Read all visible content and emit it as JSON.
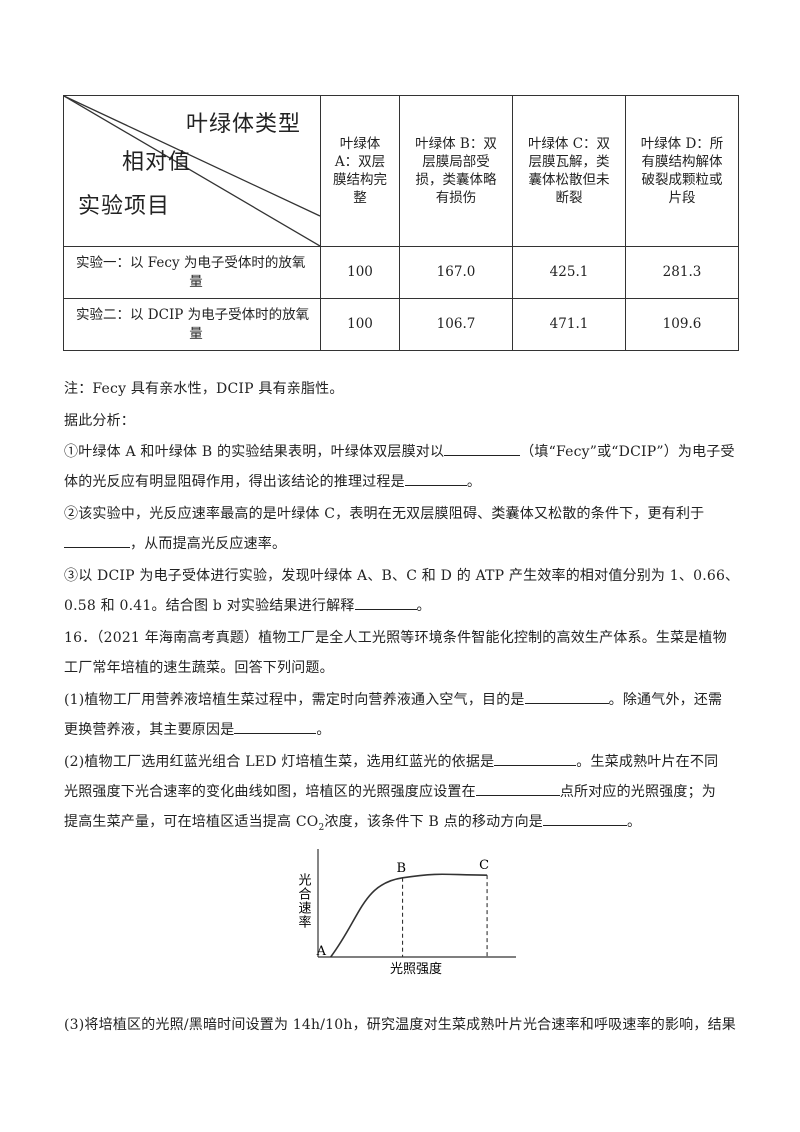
{
  "table": {
    "header": {
      "corner_top": "叶绿体类型",
      "corner_middle": "相对值",
      "corner_bottom": "实验项目",
      "columns": [
        [
          "叶绿体",
          "A：双层",
          "膜结构完",
          "整"
        ],
        [
          "叶绿体 B：双",
          "层膜局部受",
          "损，类囊体略",
          "有损伤"
        ],
        [
          "叶绿体 C：双",
          "层膜瓦解，类",
          "囊体松散但未",
          "断裂"
        ],
        [
          "叶绿体 D：所",
          "有膜结构解体",
          "破裂成颗粒或",
          "片段"
        ]
      ]
    },
    "rows": [
      {
        "label_line1": "实验一：以 Fecy 为电子受体时的放氧",
        "label_line2": "量",
        "values": [
          "100",
          "167.0",
          "425.1",
          "281.3"
        ]
      },
      {
        "label_line1": "实验二：以 DCIP 为电子受体时的放氧",
        "label_line2": "量",
        "values": [
          "100",
          "106.7",
          "471.1",
          "109.6"
        ]
      }
    ]
  },
  "text": {
    "note": "注：Fecy 具有亲水性，DCIP 具有亲脂性。",
    "analysis": "据此分析：",
    "q1_a": "①叶绿体 A 和叶绿体 B 的实验结果表明，叶绿体双层膜对以",
    "q1_b": "（填“Fecy”或“DCIP”）为电子受",
    "q1_c": "体的光反应有明显阻碍作用，得出该结论的推理过程是",
    "q1_d": "。",
    "q2_a": "②该实验中，光反应速率最高的是叶绿体 C，表明在无双层膜阻碍、类囊体又松散的条件下，更有利于",
    "q2_b": "，从而提高光反应速率。",
    "q3_a": "③以 DCIP 为电子受体进行实验，发现叶绿体 A、B、C 和 D 的 ATP 产生效率的相对值分别为 1、0.66、",
    "q3_b": "0.58 和 0.41。结合图 b 对实验结果进行解释",
    "q3_c": "。",
    "p16_a": "16．（2021 年海南高考真题）植物工厂是全人工光照等环境条件智能化控制的高效生产体系。生菜是植物",
    "p16_b": "工厂常年培植的速生蔬菜。回答下列问题。",
    "s1_a": "(1)植物工厂用营养液培植生菜过程中，需定时向营养液通入空气，目的是",
    "s1_b": "。除通气外，还需",
    "s1_c": "更换营养液，其主要原因是",
    "s1_d": "。",
    "s2_a": "(2)植物工厂选用红蓝光组合 LED 灯培植生菜，选用红蓝光的依据是",
    "s2_b": "。生菜成熟叶片在不同",
    "s2_c": "光照强度下光合速率的变化曲线如图，培植区的光照强度应设置在",
    "s2_d": "点所对应的光照强度；为",
    "s2_e": "提高生菜产量，可在培植区适当提高 CO",
    "s2_sub": "2",
    "s2_f": "浓度，该条件下 B 点的移动方向是",
    "s2_g": "。",
    "s3": "(3)将培植区的光照/黑暗时间设置为 14h/10h，研究温度对生菜成熟叶片光合速率和呼吸速率的影响，结果"
  },
  "chart_data": {
    "type": "line",
    "xlabel": "光照强度",
    "ylabel": "光合速率",
    "points": [
      "A",
      "B",
      "C"
    ],
    "x": [
      0.15,
      1.0,
      2.0
    ],
    "y": [
      0.0,
      0.9,
      0.93
    ],
    "grid": false
  }
}
